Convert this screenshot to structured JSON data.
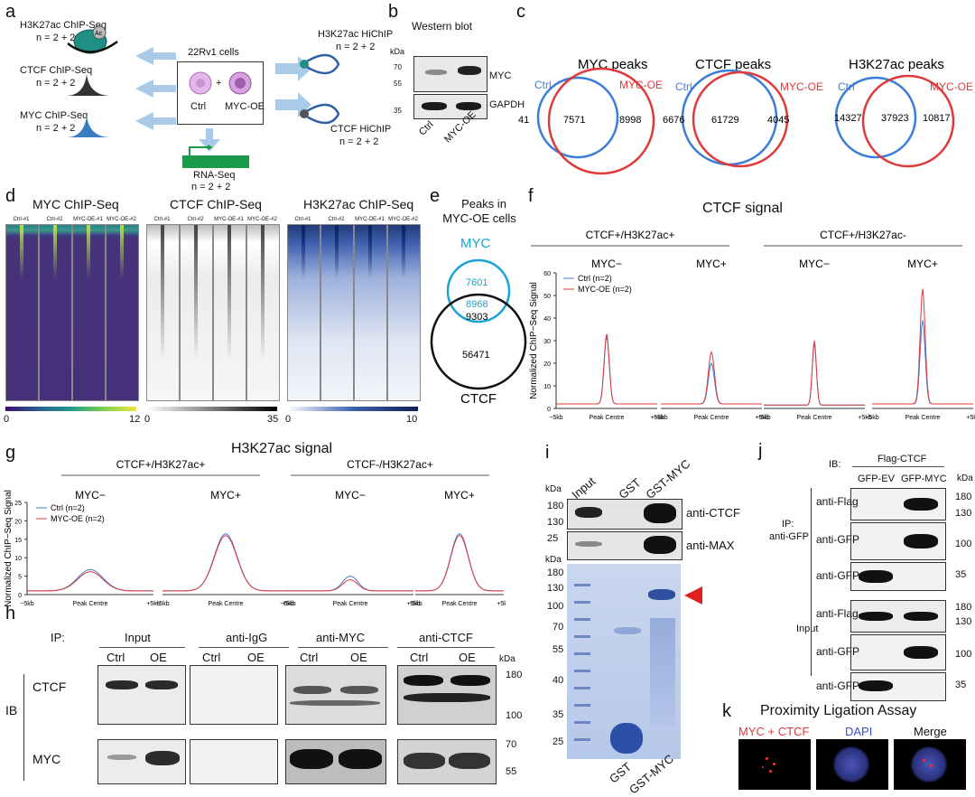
{
  "panels": [
    "a",
    "b",
    "c",
    "d",
    "e",
    "f",
    "g",
    "h",
    "i",
    "j",
    "k"
  ],
  "a": {
    "h3k27ac_chip": "H3K27ac ChIP-Seq",
    "h3k27ac_n": "n = 2 + 2",
    "ctcf_chip": "CTCF ChIP-Seq",
    "ctcf_n": "n = 2 + 2",
    "myc_chip": "MYC ChIP-Seq",
    "myc_n": "n = 2 + 2",
    "cells": "22Rv1 cells",
    "ctrl": "Ctrl",
    "plus": "+",
    "oe": "MYC-OE",
    "hichip_h3": "H3K27ac HiChIP",
    "hichip_h3_n": "n = 2 + 2",
    "hichip_ctcf": "CTCF HiChIP",
    "hichip_ctcf_n": "n = 2 + 2",
    "rnaseq": "RNA-Seq",
    "rnaseq_n": "n = 2 + 2",
    "ac": "Ac"
  },
  "b": {
    "title": "Western blot",
    "kda": "kDa",
    "m70": "70",
    "m55": "55",
    "m35": "35",
    "myc": "MYC",
    "gapdh": "GAPDH",
    "ctrl": "Ctrl",
    "oe": "MYC-OE"
  },
  "c": {
    "venns": [
      {
        "title": "MYC peaks",
        "ctrl": "Ctrl",
        "oe": "MYC-OE",
        "left": "41",
        "mid": "7571",
        "right": "8998"
      },
      {
        "title": "CTCF peaks",
        "ctrl": "Ctrl",
        "oe": "MYC-OE",
        "left": "6676",
        "mid": "61729",
        "right": "4045"
      },
      {
        "title": "H3K27ac peaks",
        "ctrl": "Ctrl",
        "oe": "MYC-OE",
        "left": "14327",
        "mid": "37923",
        "right": "10817"
      }
    ]
  },
  "d": {
    "groups": [
      {
        "title": "MYC ChIP-Seq",
        "min": "0",
        "max": "12"
      },
      {
        "title": "CTCF ChIP-Seq",
        "min": "0",
        "max": "35"
      },
      {
        "title": "H3K27ac ChIP-Seq",
        "min": "0",
        "max": "10"
      }
    ],
    "samples": [
      "Ctrl-#1",
      "Ctrl-#2",
      "MYC-OE-#1",
      "MYC-OE-#2"
    ]
  },
  "e": {
    "title1": "Peaks in",
    "title2": "MYC-OE cells",
    "myc": "MYC",
    "myc_only": "7601",
    "overlap_myc": "8968",
    "overlap_ctcf": "9303",
    "ctcf_only": "56471",
    "ctcf": "CTCF"
  },
  "f": {
    "title": "CTCF signal",
    "group1": "CTCF+/H3K27ac+",
    "group2": "CTCF+/H3K27ac-",
    "subs": [
      "MYC−",
      "MYC+",
      "MYC−",
      "MYC+"
    ],
    "ylabel": "Normalized ChIP−Seq Signal",
    "legend_ctrl": "Ctrl (n=2)",
    "legend_oe": "MYC-OE (n=2)",
    "x_left": "−5kb",
    "x_mid": "Peak Centre",
    "x_right": "+5kb",
    "yticks": [
      "0",
      "10",
      "20",
      "30",
      "40",
      "50",
      "60"
    ]
  },
  "g": {
    "title": "H3K27ac signal",
    "group1": "CTCF+/H3K27ac+",
    "group2": "CTCF-/H3K27ac+",
    "subs": [
      "MYC−",
      "MYC+",
      "MYC−",
      "MYC+"
    ],
    "ylabel": "Normalized ChIP−Seq Signal",
    "legend_ctrl": "Ctrl (n=2)",
    "legend_oe": "MYC-OE (n=2)",
    "x_left": "−5kb",
    "x_mid": "Peak Centre",
    "x_right": "+5kb",
    "yticks": [
      "0",
      "5",
      "10",
      "15",
      "20",
      "25"
    ]
  },
  "h": {
    "ip": "IP:",
    "groups": [
      "Input",
      "anti-IgG",
      "anti-MYC",
      "anti-CTCF"
    ],
    "ctrl": "Ctrl",
    "oe": "OE",
    "ib": "IB",
    "row1": "CTCF",
    "row2": "MYC",
    "kda": "kDa",
    "m180": "180",
    "m100": "100",
    "m70": "70",
    "m55": "55"
  },
  "i": {
    "kda": "kDa",
    "lanes": [
      "Input",
      "GST",
      "GST-MYC"
    ],
    "anti_ctcf": "anti-CTCF",
    "anti_max": "anti-MAX",
    "m180": "180",
    "m130": "130",
    "m25": "25",
    "gel_markers": [
      "180",
      "130",
      "100",
      "70",
      "55",
      "40",
      "35",
      "25"
    ],
    "bottom_gst": "GST",
    "bottom_gstmyc": "GST-MYC"
  },
  "j": {
    "flag": "Flag-CTCF",
    "ib": "IB:",
    "lane1": "GFP-EV",
    "lane2": "GFP-MYC",
    "kda": "kDa",
    "ip": "IP:",
    "ip2": "anti-GFP",
    "input": "Input",
    "rows": [
      "anti-Flag",
      "anti-GFP",
      "anti-GFP",
      "anti-Flag",
      "anti-GFP",
      "anti-GFP"
    ],
    "m180": "180",
    "m130": "130",
    "m100": "100",
    "m35": "35"
  },
  "k": {
    "title": "Proximity Ligation Assay",
    "ch1": "MYC + CTCF",
    "ch2": "DAPI",
    "ch3": "Merge"
  },
  "colors": {
    "ctrl_blue": "#3b7dd8",
    "oe_red": "#e0393a",
    "cyan": "#1aa3d6",
    "arrow_blue": "#a9cbe8",
    "rna_green": "#1a9a4a",
    "red_arrow": "#e02020"
  }
}
